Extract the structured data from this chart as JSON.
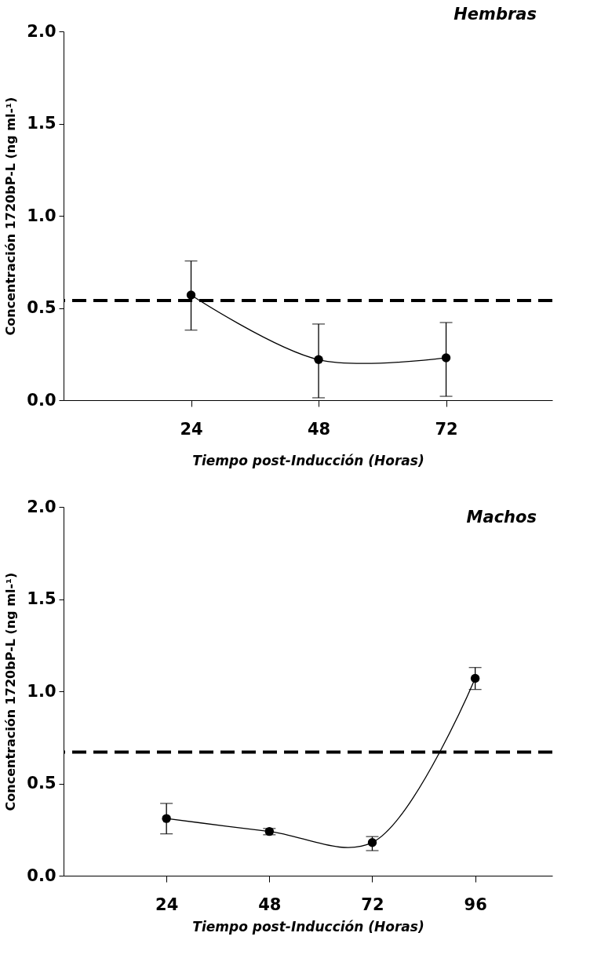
{
  "chart_data": [
    {
      "type": "line",
      "title": "Hembras",
      "xlabel": "Tiempo post-Inducción (Horas)",
      "ylabel": "Concentración 1720bP-L (ng ml-¹)",
      "x": [
        24,
        48,
        72
      ],
      "series": [
        {
          "color": "#000000",
          "values": [
            0.57,
            0.22,
            0.23
          ],
          "errors": [
            [
              0.38,
              0.755
            ],
            [
              0.013,
              0.413
            ],
            [
              0.021,
              0.421
            ]
          ]
        }
      ],
      "xlim": [
        0,
        92
      ],
      "xticks": [
        24,
        48,
        72
      ],
      "ylim": [
        0,
        2
      ],
      "yticks": [
        {
          "value": 0,
          "label": "0.0"
        },
        {
          "value": 0.5,
          "label": "0.5"
        },
        {
          "value": 1,
          "label": "1.0"
        },
        {
          "value": 1.5,
          "label": "1.5"
        },
        {
          "value": 2,
          "label": "2.0"
        }
      ],
      "ref_lines": [
        {
          "axis": "y",
          "value": 0.54,
          "color": "#000000",
          "line_style": "dashed"
        }
      ],
      "marker": "circle",
      "grid": false
    },
    {
      "type": "line",
      "title": "Machos",
      "xlabel": "Tiempo post-Inducción (Horas)",
      "ylabel": "Concentración 1720bP-L (ng ml-¹)",
      "x": [
        24,
        48,
        72,
        96
      ],
      "series": [
        {
          "color": "#000000",
          "values": [
            0.31,
            0.24,
            0.18,
            1.07
          ],
          "errors": [
            [
              0.227,
              0.392
            ],
            [
              0.222,
              0.256
            ],
            [
              0.136,
              0.212
            ],
            [
              1.01,
              1.129
            ]
          ]
        }
      ],
      "xlim": [
        0,
        114
      ],
      "xticks": [
        24,
        48,
        72,
        96
      ],
      "ylim": [
        0,
        2
      ],
      "yticks": [
        {
          "value": 0,
          "label": "0.0"
        },
        {
          "value": 0.5,
          "label": "0.5"
        },
        {
          "value": 1,
          "label": "1.0"
        },
        {
          "value": 1.5,
          "label": "1.5"
        },
        {
          "value": 2,
          "label": "2.0"
        }
      ],
      "ref_lines": [
        {
          "axis": "y",
          "value": 0.67,
          "color": "#000000",
          "line_style": "dashed"
        }
      ],
      "marker": "circle",
      "grid": false
    }
  ]
}
